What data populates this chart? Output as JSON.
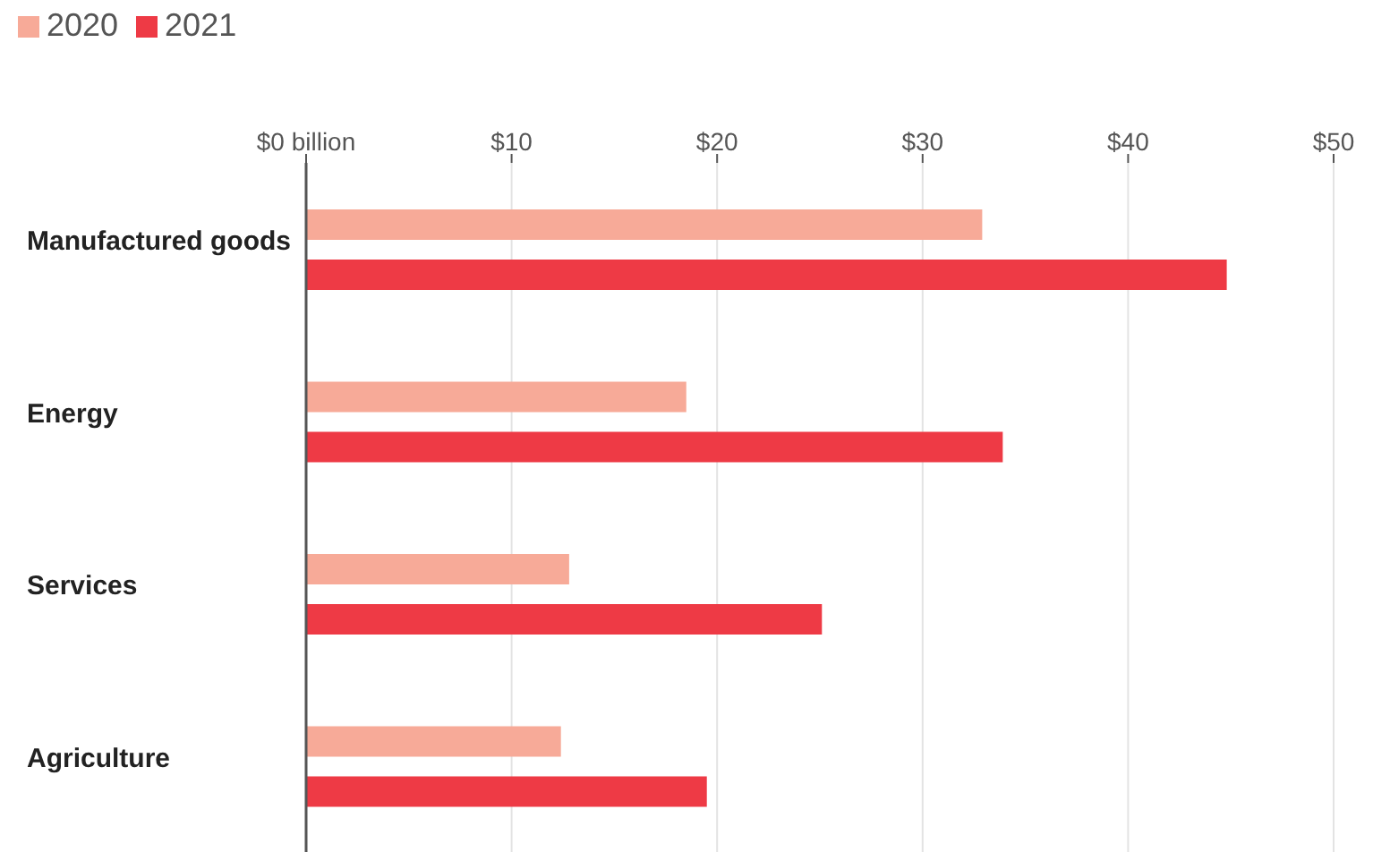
{
  "chart_data": {
    "type": "bar",
    "orientation": "horizontal",
    "categories": [
      "Manufactured goods",
      "Energy",
      "Services",
      "Agriculture"
    ],
    "series": [
      {
        "name": "2020",
        "color": "#f7aa98",
        "values": [
          32.9,
          18.5,
          12.8,
          12.4
        ]
      },
      {
        "name": "2021",
        "color": "#ee3a45",
        "values": [
          44.8,
          33.9,
          25.1,
          19.5
        ]
      }
    ],
    "xlim": [
      0,
      50
    ],
    "xticks": [
      {
        "value": 0,
        "label": "$0 billion"
      },
      {
        "value": 10,
        "label": "$10"
      },
      {
        "value": 20,
        "label": "$20"
      },
      {
        "value": 30,
        "label": "$30"
      },
      {
        "value": 40,
        "label": "$40"
      },
      {
        "value": 50,
        "label": "$50"
      }
    ],
    "grid": "x",
    "legend": "top left"
  }
}
